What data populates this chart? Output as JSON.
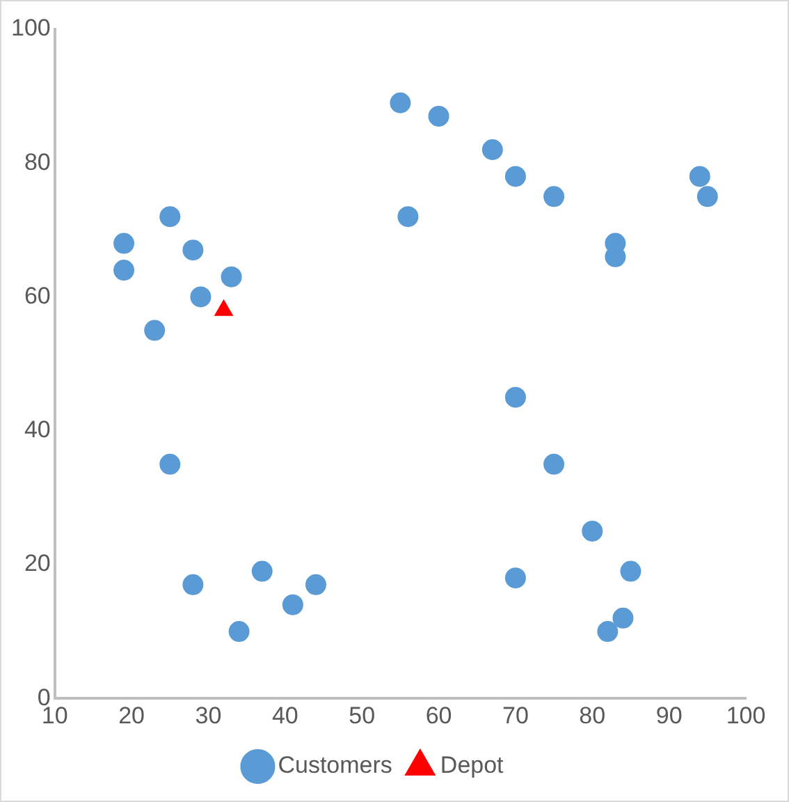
{
  "chart_data": {
    "type": "scatter",
    "xlim": [
      10,
      100
    ],
    "xticks": [
      10,
      20,
      30,
      40,
      50,
      60,
      70,
      80,
      90,
      100
    ],
    "ylim": [
      0,
      100
    ],
    "yticks": [
      0,
      20,
      40,
      60,
      80,
      100
    ],
    "grid": false,
    "legend": "bottom",
    "series": [
      {
        "name": "Customers",
        "color": "#5b9bd5",
        "marker": "circle",
        "x": [
          19,
          19,
          25,
          28,
          33,
          29,
          23,
          25,
          28,
          37,
          41,
          44,
          34,
          55,
          60,
          56,
          67,
          70,
          75,
          83,
          83,
          94,
          95,
          70,
          75,
          80,
          85,
          70,
          84,
          82
        ],
        "values": [
          68,
          64,
          72,
          67,
          63,
          60,
          55,
          35,
          17,
          19,
          14,
          17,
          10,
          89,
          87,
          72,
          82,
          78,
          75,
          68,
          66,
          78,
          75,
          45,
          35,
          25,
          19,
          18,
          12,
          10
        ]
      },
      {
        "name": "Depot",
        "color": "#ff0000",
        "marker": "triangle",
        "x": [
          32
        ],
        "values": [
          58
        ]
      }
    ]
  }
}
